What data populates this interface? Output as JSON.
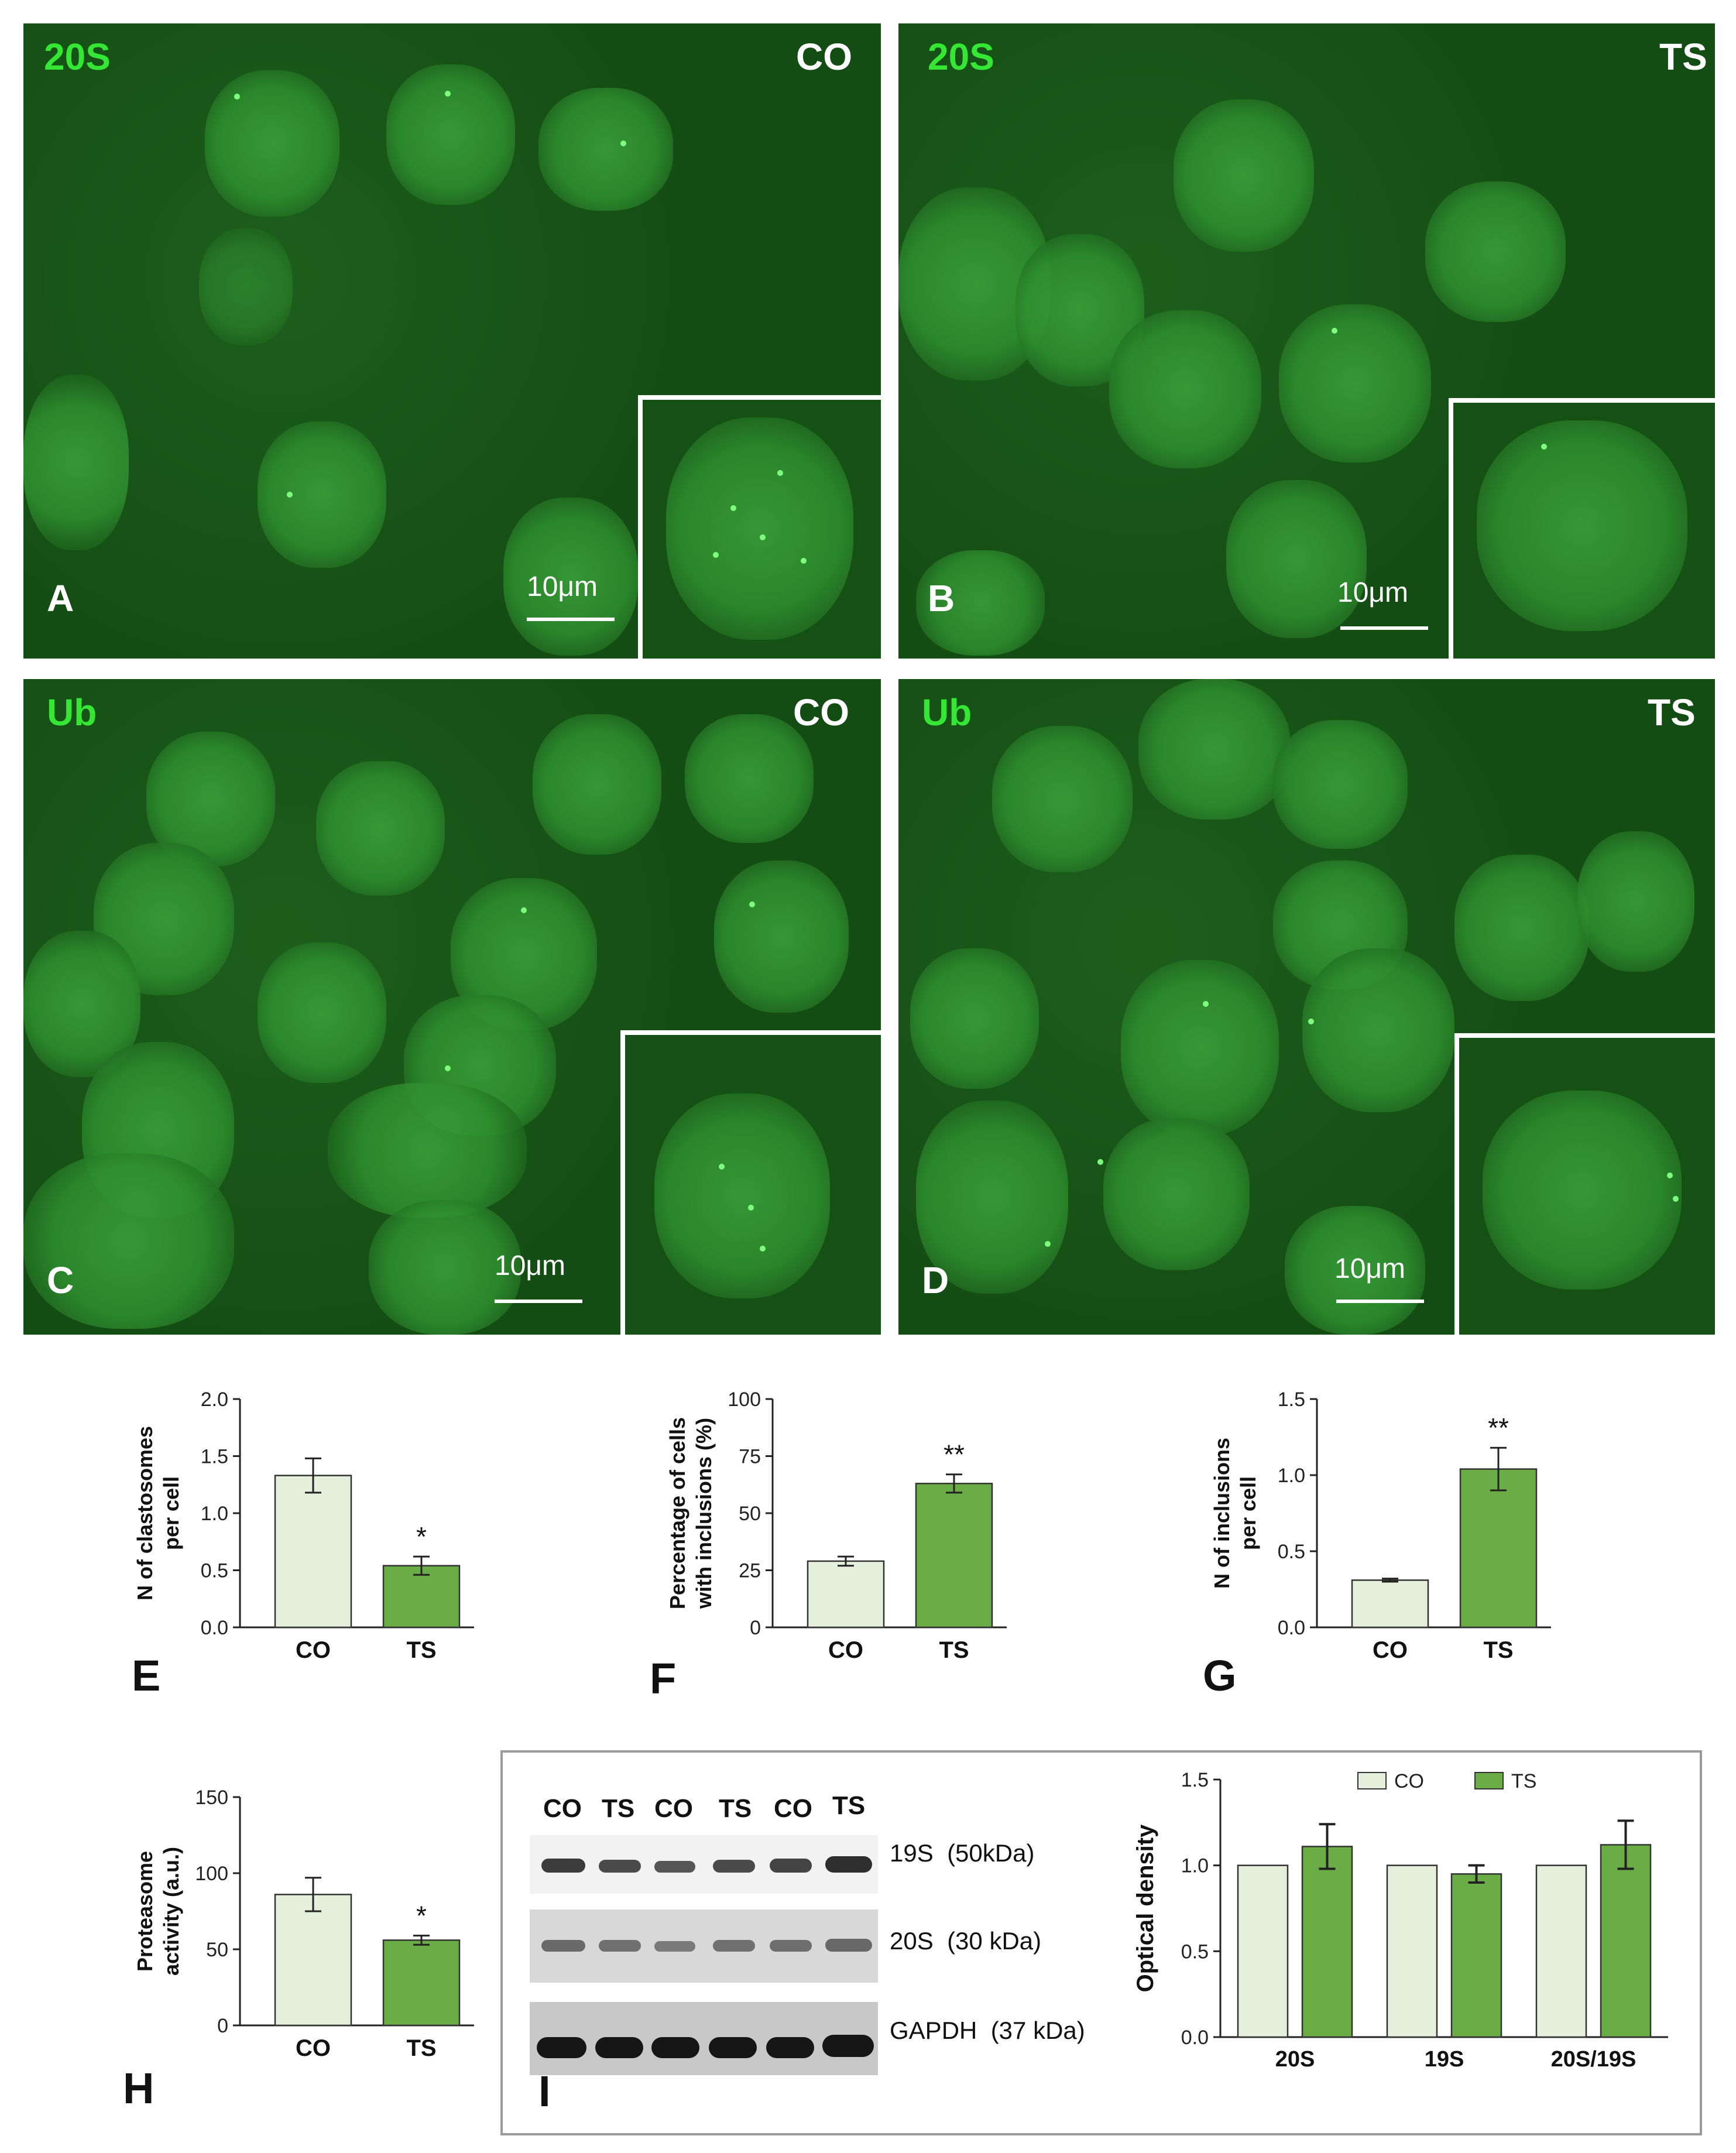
{
  "micrographs": {
    "A": {
      "stain": "20S",
      "condition": "CO",
      "letter": "A",
      "scale": "10μm"
    },
    "B": {
      "stain": "20S",
      "condition": "TS",
      "letter": "B",
      "scale": "10μm"
    },
    "C": {
      "stain": "Ub",
      "condition": "CO",
      "letter": "C",
      "scale": "10μm"
    },
    "D": {
      "stain": "Ub",
      "condition": "TS",
      "letter": "D",
      "scale": "10μm"
    }
  },
  "chart_data": [
    {
      "id": "E",
      "type": "bar",
      "panel_letter": "E",
      "ylabel_line1": "N of clastosomes",
      "ylabel_line2": "per cell",
      "categories": [
        "CO",
        "TS"
      ],
      "values": [
        1.33,
        0.54
      ],
      "errors": [
        0.15,
        0.08
      ],
      "ylim": [
        0,
        2.0
      ],
      "yticks": [
        "0.0",
        "0.5",
        "1.0",
        "1.5",
        "2.0"
      ],
      "annotations": [
        "",
        "*"
      ],
      "colors": [
        "#e4f0dc",
        "#6aad46"
      ]
    },
    {
      "id": "F",
      "type": "bar",
      "panel_letter": "F",
      "ylabel_line1": "Percentage of cells",
      "ylabel_line2": "with inclusions  (%)",
      "categories": [
        "CO",
        "TS"
      ],
      "values": [
        29,
        63
      ],
      "errors": [
        2,
        4
      ],
      "ylim": [
        0,
        100
      ],
      "yticks": [
        "0",
        "25",
        "50",
        "75",
        "100"
      ],
      "annotations": [
        "",
        "**"
      ],
      "colors": [
        "#e4f0dc",
        "#6aad46"
      ]
    },
    {
      "id": "G",
      "type": "bar",
      "panel_letter": "G",
      "ylabel_line1": "N of inclusions",
      "ylabel_line2": "per cell",
      "categories": [
        "CO",
        "TS"
      ],
      "values": [
        0.31,
        1.04
      ],
      "errors": [
        0.01,
        0.14
      ],
      "ylim": [
        0,
        1.5
      ],
      "yticks": [
        "0.0",
        "0.5",
        "1.0",
        "1.5"
      ],
      "annotations": [
        "",
        "**"
      ],
      "colors": [
        "#e4f0dc",
        "#6aad46"
      ]
    },
    {
      "id": "H",
      "type": "bar",
      "panel_letter": "H",
      "ylabel_line1": "Proteasome",
      "ylabel_line2": "activity (a.u.)",
      "categories": [
        "CO",
        "TS"
      ],
      "values": [
        86,
        56
      ],
      "errors": [
        11,
        3
      ],
      "ylim": [
        0,
        150
      ],
      "yticks": [
        "0",
        "50",
        "100",
        "150"
      ],
      "annotations": [
        "",
        "*"
      ],
      "colors": [
        "#e4f0dc",
        "#6aad46"
      ]
    },
    {
      "id": "I",
      "type": "bar",
      "panel_letter": "I",
      "ylabel": "Optical density",
      "categories": [
        "20S",
        "19S",
        "20S/19S"
      ],
      "series": [
        {
          "name": "CO",
          "values": [
            1.0,
            1.0,
            1.0
          ],
          "errors": [
            0,
            0,
            0
          ],
          "color": "#e4f0dc"
        },
        {
          "name": "TS",
          "values": [
            1.11,
            0.95,
            1.12
          ],
          "errors": [
            0.13,
            0.05,
            0.14
          ],
          "color": "#6aad46"
        }
      ],
      "ylim": [
        0,
        1.5
      ],
      "yticks": [
        "0.0",
        "0.5",
        "1.0",
        "1.5"
      ],
      "legend": "top"
    }
  ],
  "blot": {
    "lanes": [
      "CO",
      "TS",
      "CO",
      "TS",
      "CO",
      "TS"
    ],
    "bands": [
      "19S  (50kDa)",
      "20S  (30 kDa)",
      "GAPDH  (37 kDa)"
    ]
  }
}
